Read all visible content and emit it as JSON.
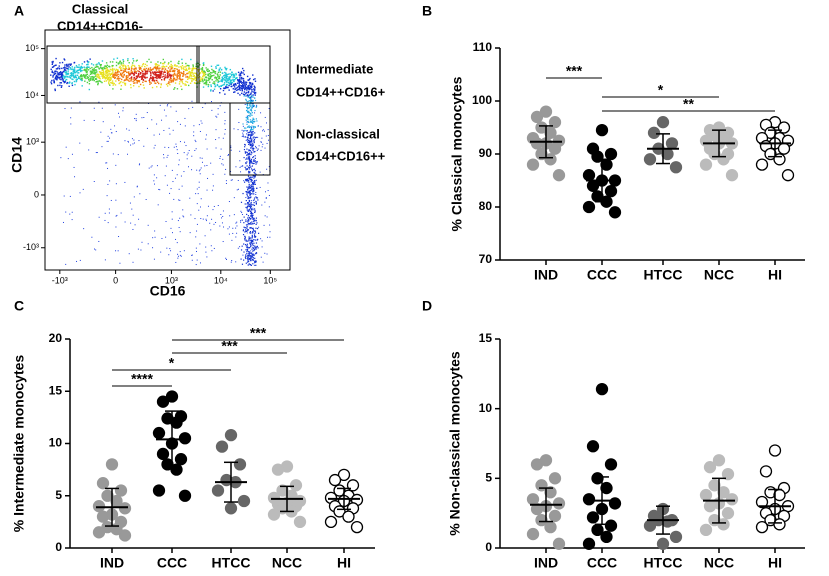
{
  "chart_data": [
    {
      "type": "flow_cytometry",
      "panel_label": "A",
      "xlabel": "CD16",
      "ylabel": "CD14",
      "xlim": [
        -2000,
        250000
      ],
      "ylim": [
        -3000,
        250000
      ],
      "xticks": [
        {
          "value": -1000,
          "label": "-10³"
        },
        0,
        {
          "value": 1000,
          "label": "10³"
        },
        {
          "value": 10000,
          "label": "10⁴"
        },
        {
          "value": 100000,
          "label": "10⁵"
        }
      ],
      "yticks": [
        {
          "value": -1000,
          "label": "-10³"
        },
        0,
        {
          "value": 1000,
          "label": "10³"
        },
        {
          "value": 10000,
          "label": "10⁴"
        },
        {
          "value": 100000,
          "label": "10⁵"
        }
      ],
      "gates": [
        {
          "name": "Classical",
          "label": "CD14++CD16-"
        },
        {
          "name": "Intermediate",
          "label": "CD14++CD16+"
        },
        {
          "name": "Non-classical",
          "label": "CD14+CD16++"
        }
      ]
    },
    {
      "type": "dot",
      "panel_label": "B",
      "ylabel": "% Classical monocytes",
      "categories": [
        "IND",
        "CCC",
        "HTCC",
        "NCC",
        "HI"
      ],
      "colors": [
        "#999999",
        "#000000",
        "#666666",
        "#bbbbbb",
        "#ffffff"
      ],
      "edge_colors": [
        "#999999",
        "#000000",
        "#666666",
        "#bbbbbb",
        "#000000"
      ],
      "ylim": [
        70,
        110
      ],
      "yticks": [
        70,
        80,
        90,
        100,
        110
      ],
      "values": [
        [
          98,
          97,
          96,
          95,
          94,
          93,
          92.5,
          92,
          92,
          91,
          90,
          89,
          88,
          86
        ],
        [
          94.5,
          91,
          90,
          89.5,
          88,
          86,
          85,
          85,
          84,
          83,
          82,
          81,
          80,
          79
        ],
        [
          96,
          94,
          92,
          91,
          90,
          89,
          87.5
        ],
        [
          95,
          94.5,
          94,
          93.5,
          93,
          92.5,
          92,
          92,
          91,
          90,
          90,
          89,
          88,
          86
        ],
        [
          96,
          95.5,
          95,
          94,
          93,
          93,
          92.5,
          92,
          91.5,
          91,
          90,
          89,
          88,
          86
        ]
      ],
      "means": [
        92.3,
        85,
        91,
        92,
        92
      ],
      "sds": [
        3,
        4,
        2.8,
        2.5,
        2.5
      ],
      "significance": [
        {
          "label": "***",
          "from": "IND",
          "to": "CCC"
        },
        {
          "label": "*",
          "from": "CCC",
          "to": "NCC"
        },
        {
          "label": "**",
          "from": "CCC",
          "to": "HI"
        }
      ]
    },
    {
      "type": "dot",
      "panel_label": "C",
      "ylabel": "% Intermediate monocytes",
      "categories": [
        "IND",
        "CCC",
        "HTCC",
        "NCC",
        "HI"
      ],
      "colors": [
        "#999999",
        "#000000",
        "#666666",
        "#bbbbbb",
        "#ffffff"
      ],
      "edge_colors": [
        "#999999",
        "#000000",
        "#666666",
        "#bbbbbb",
        "#000000"
      ],
      "ylim": [
        0,
        20
      ],
      "yticks": [
        0,
        5,
        10,
        15,
        20
      ],
      "values": [
        [
          8,
          6.2,
          5.5,
          5,
          4.5,
          4,
          3.8,
          3.2,
          3,
          2.5,
          2,
          1.8,
          1.5,
          1.2
        ],
        [
          14.5,
          14,
          12.6,
          12.4,
          12,
          11,
          10.5,
          10,
          9,
          8.5,
          8,
          7.5,
          5.5,
          5
        ],
        [
          10.8,
          9.7,
          8,
          6.5,
          6.3,
          5.5,
          4.5,
          3.8
        ],
        [
          7.8,
          7.5,
          6,
          5.5,
          5,
          4.8,
          4.5,
          4.3,
          4.2,
          4,
          3.8,
          3.5,
          3.2,
          2.5
        ],
        [
          7,
          6.5,
          6,
          5.5,
          5,
          4.8,
          4.6,
          4.5,
          4,
          3.8,
          3.5,
          3,
          2.5,
          2
        ]
      ],
      "means": [
        3.9,
        10.4,
        6.3,
        4.7,
        4.7
      ],
      "sds": [
        1.8,
        2.7,
        1.9,
        1.2,
        1
      ],
      "significance": [
        {
          "label": "***",
          "from": "CCC",
          "to": "HI"
        },
        {
          "label": "***",
          "from": "CCC",
          "to": "NCC"
        },
        {
          "label": "*",
          "from": "IND",
          "to": "HTCC"
        },
        {
          "label": "****",
          "from": "IND",
          "to": "CCC"
        }
      ]
    },
    {
      "type": "dot",
      "panel_label": "D",
      "ylabel": "% Non-classical monocytes",
      "categories": [
        "IND",
        "CCC",
        "HTCC",
        "NCC",
        "HI"
      ],
      "colors": [
        "#999999",
        "#000000",
        "#666666",
        "#bbbbbb",
        "#ffffff"
      ],
      "edge_colors": [
        "#999999",
        "#000000",
        "#666666",
        "#bbbbbb",
        "#000000"
      ],
      "ylim": [
        0,
        15
      ],
      "yticks": [
        0,
        5,
        10,
        15
      ],
      "values": [
        [
          6.3,
          6,
          5,
          4.5,
          4,
          3.5,
          3.2,
          3,
          2.8,
          2.3,
          2,
          1.5,
          1,
          0.3
        ],
        [
          11.4,
          7.3,
          6,
          5,
          4.3,
          3.5,
          3.2,
          2.8,
          2.2,
          1.6,
          1.3,
          0.8,
          0.3
        ],
        [
          2.8,
          2.3,
          2,
          2,
          1.9,
          1.6,
          0.8,
          0.3
        ],
        [
          6.3,
          5.8,
          5.3,
          4.5,
          4,
          3.8,
          3.5,
          3.2,
          3,
          2.5,
          2,
          1.7,
          1.3
        ],
        [
          7,
          5.5,
          4.3,
          4,
          3.8,
          3.3,
          3,
          2.8,
          2.5,
          2.3,
          2,
          1.7,
          1.5
        ]
      ],
      "means": [
        3.1,
        3.4,
        2,
        3.4,
        3
      ],
      "sds": [
        1.2,
        1.7,
        1,
        1.6,
        1.2
      ],
      "significance": []
    }
  ]
}
